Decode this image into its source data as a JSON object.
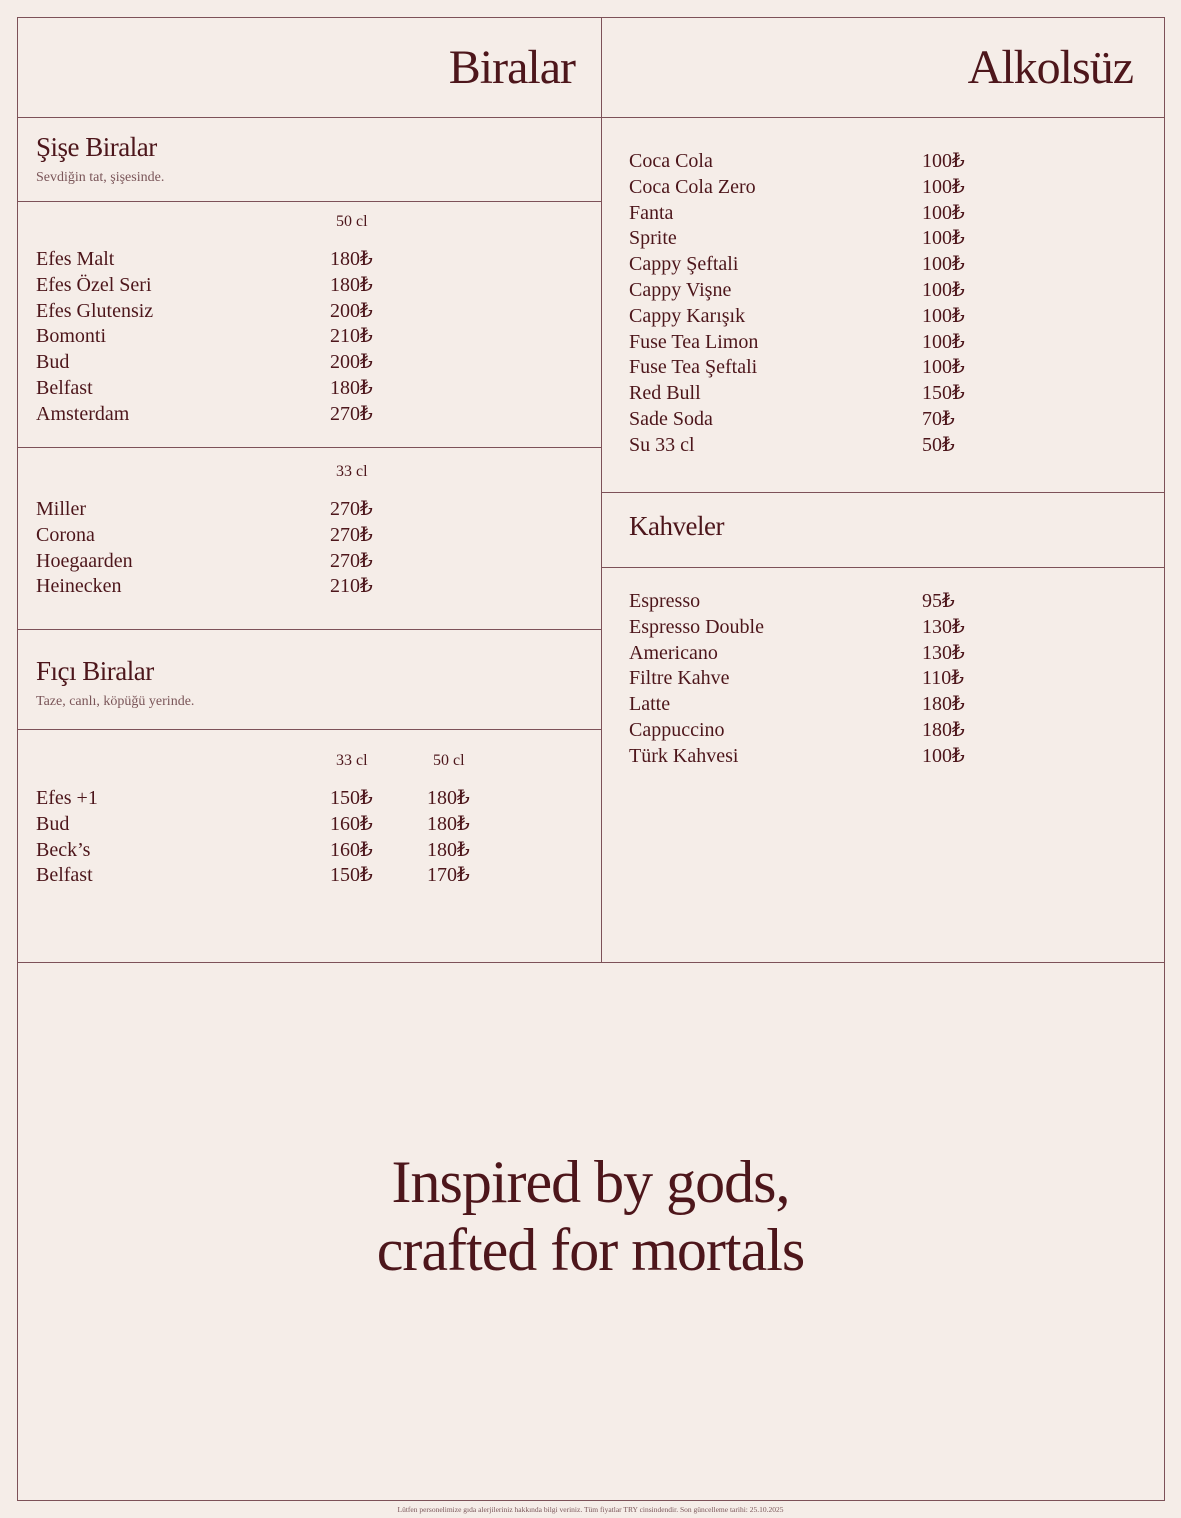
{
  "colors": {
    "background": "#f5ede8",
    "text": "#4d161b",
    "rule": "#7d5158"
  },
  "beers": {
    "title": "Biralar",
    "bottled": {
      "title": "Şişe Biralar",
      "subtitle": "Sevdiğin tat, şişesinde.",
      "group_50": {
        "header": "50 cl",
        "items": [
          {
            "name": "Efes Malt",
            "price": "180₺"
          },
          {
            "name": "Efes Özel Seri",
            "price": "180₺"
          },
          {
            "name": "Efes Glutensiz",
            "price": "200₺"
          },
          {
            "name": "Bomonti",
            "price": "210₺"
          },
          {
            "name": "Bud",
            "price": "200₺"
          },
          {
            "name": "Belfast",
            "price": "180₺"
          },
          {
            "name": "Amsterdam",
            "price": "270₺"
          }
        ]
      },
      "group_33": {
        "header": "33 cl",
        "items": [
          {
            "name": "Miller",
            "price": "270₺"
          },
          {
            "name": "Corona",
            "price": "270₺"
          },
          {
            "name": "Hoegaarden",
            "price": "270₺"
          },
          {
            "name": "Heinecken",
            "price": "210₺"
          }
        ]
      }
    },
    "draft": {
      "title": "Fıçı Biralar",
      "subtitle": "Taze, canlı, köpüğü yerinde.",
      "headers": [
        "33 cl",
        "50 cl"
      ],
      "items": [
        {
          "name": "Efes +1",
          "price": "150₺",
          "price2": "180₺"
        },
        {
          "name": "Bud",
          "price": "160₺",
          "price2": "180₺"
        },
        {
          "name": "Beck’s",
          "price": "160₺",
          "price2": "180₺"
        },
        {
          "name": "Belfast",
          "price": "150₺",
          "price2": "170₺"
        }
      ]
    }
  },
  "soft": {
    "title": "Alkolsüz",
    "items": [
      {
        "name": "Coca Cola",
        "price": "100₺"
      },
      {
        "name": "Coca Cola Zero",
        "price": "100₺"
      },
      {
        "name": "Fanta",
        "price": "100₺"
      },
      {
        "name": "Sprite",
        "price": "100₺"
      },
      {
        "name": "Cappy Şeftali",
        "price": "100₺"
      },
      {
        "name": "Cappy Vişne",
        "price": "100₺"
      },
      {
        "name": "Cappy Karışık",
        "price": "100₺"
      },
      {
        "name": "Fuse Tea Limon",
        "price": "100₺"
      },
      {
        "name": "Fuse Tea Şeftali",
        "price": "100₺"
      },
      {
        "name": "Red Bull",
        "price": "150₺"
      },
      {
        "name": "Sade Soda",
        "price": "70₺"
      },
      {
        "name": "Su 33 cl",
        "price": "50₺"
      }
    ]
  },
  "coffee": {
    "title": "Kahveler",
    "items": [
      {
        "name": "Espresso",
        "price": "95₺"
      },
      {
        "name": "Espresso Double",
        "price": "130₺"
      },
      {
        "name": "Americano",
        "price": "130₺"
      },
      {
        "name": "Filtre Kahve",
        "price": "110₺"
      },
      {
        "name": "Latte",
        "price": "180₺"
      },
      {
        "name": "Cappuccino",
        "price": "180₺"
      },
      {
        "name": "Türk Kahvesi",
        "price": "100₺"
      }
    ]
  },
  "tagline": {
    "line1": "Inspired by gods,",
    "line2": "crafted for mortals"
  },
  "footer": "Lütfen personelimize gıda alerjileriniz hakkında bilgi veriniz. Tüm fiyatlar TRY cinsindendir. Son güncelleme tarihi: 25.10.2025"
}
